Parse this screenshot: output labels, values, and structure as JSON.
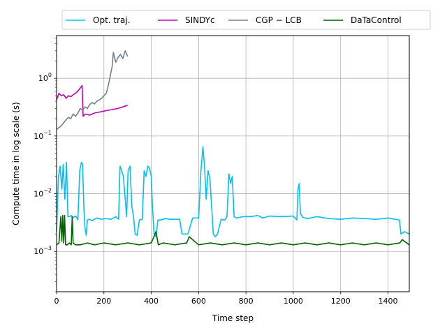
{
  "chart_data": {
    "type": "line",
    "title": "",
    "xlabel": "Time step",
    "ylabel": "Compute time in log scale (s)",
    "xlim": [
      0,
      1490
    ],
    "ylim": [
      0.0002,
      5.5
    ],
    "yscale": "log",
    "grid": true,
    "legend_position": "top",
    "x_ticks": [
      0,
      200,
      400,
      600,
      800,
      1000,
      1200,
      1400
    ],
    "x_tick_labels": [
      "0",
      "200",
      "400",
      "600",
      "800",
      "1000",
      "1200",
      "1400"
    ],
    "y_ticks": [
      0.001,
      0.01,
      0.1,
      1
    ],
    "y_tick_labels": [
      "10^-3",
      "10^-2",
      "10^-1",
      "10^0"
    ],
    "series": [
      {
        "name": "Opt. traj.",
        "color": "#00bfff",
        "x": [
          0,
          8,
          15,
          22,
          28,
          35,
          42,
          48,
          55,
          62,
          68,
          75,
          82,
          90,
          98,
          105,
          110,
          115,
          120,
          125,
          130,
          140,
          150,
          170,
          190,
          210,
          230,
          250,
          262,
          268,
          275,
          282,
          290,
          296,
          302,
          310,
          318,
          325,
          332,
          340,
          350,
          362,
          370,
          378,
          385,
          392,
          400,
          405,
          412,
          420,
          428,
          440,
          460,
          480,
          500,
          520,
          530,
          540,
          555,
          575,
          600,
          610,
          618,
          625,
          632,
          640,
          648,
          655,
          662,
          670,
          680,
          695,
          710,
          720,
          728,
          735,
          742,
          750,
          760,
          790,
          820,
          850,
          870,
          900,
          950,
          1000,
          1015,
          1020,
          1025,
          1030,
          1040,
          1060,
          1100,
          1150,
          1200,
          1250,
          1300,
          1350,
          1400,
          1430,
          1448,
          1455,
          1470,
          1490
        ],
        "y": [
          0.0022,
          0.02,
          0.03,
          0.012,
          0.032,
          0.008,
          0.035,
          0.004,
          0.004,
          0.0042,
          0.0038,
          0.004,
          0.0041,
          0.0035,
          0.025,
          0.035,
          0.032,
          0.006,
          0.0025,
          0.0019,
          0.0035,
          0.0036,
          0.0034,
          0.0038,
          0.0036,
          0.0037,
          0.0036,
          0.004,
          0.0036,
          0.03,
          0.025,
          0.02,
          0.008,
          0.004,
          0.025,
          0.03,
          0.006,
          0.004,
          0.002,
          0.0019,
          0.0035,
          0.0036,
          0.025,
          0.02,
          0.03,
          0.028,
          0.02,
          0.006,
          0.002,
          0.0018,
          0.0035,
          0.0035,
          0.0037,
          0.0036,
          0.0036,
          0.0036,
          0.002,
          0.002,
          0.002,
          0.0038,
          0.0038,
          0.025,
          0.065,
          0.03,
          0.008,
          0.025,
          0.018,
          0.006,
          0.002,
          0.0018,
          0.002,
          0.0036,
          0.0035,
          0.004,
          0.022,
          0.015,
          0.02,
          0.004,
          0.0038,
          0.004,
          0.004,
          0.0042,
          0.0038,
          0.0041,
          0.004,
          0.0041,
          0.0035,
          0.012,
          0.015,
          0.0045,
          0.0039,
          0.0037,
          0.004,
          0.0037,
          0.0036,
          0.0038,
          0.0037,
          0.0036,
          0.0038,
          0.0036,
          0.0035,
          0.002,
          0.0022,
          0.002
        ]
      },
      {
        "name": "SINDYc",
        "color": "#bf00bf",
        "x": [
          0,
          10,
          20,
          30,
          40,
          50,
          60,
          70,
          80,
          90,
          100,
          108,
          112,
          120,
          140,
          160,
          180,
          200,
          220,
          240,
          260,
          280,
          300
        ],
        "y": [
          0.42,
          0.55,
          0.5,
          0.52,
          0.45,
          0.5,
          0.48,
          0.52,
          0.55,
          0.6,
          0.68,
          0.75,
          0.22,
          0.24,
          0.23,
          0.25,
          0.26,
          0.27,
          0.28,
          0.29,
          0.3,
          0.32,
          0.34
        ]
      },
      {
        "name": "CGP − LCB",
        "color": "#708090",
        "x": [
          0,
          10,
          20,
          30,
          40,
          50,
          60,
          70,
          80,
          90,
          100,
          110,
          120,
          130,
          140,
          150,
          160,
          170,
          180,
          190,
          200,
          210,
          220,
          230,
          235,
          240,
          250,
          260,
          270,
          280,
          290,
          300
        ],
        "y": [
          0.13,
          0.14,
          0.15,
          0.17,
          0.19,
          0.21,
          0.2,
          0.24,
          0.22,
          0.25,
          0.3,
          0.28,
          0.32,
          0.3,
          0.35,
          0.38,
          0.36,
          0.4,
          0.42,
          0.45,
          0.5,
          0.55,
          0.8,
          1.3,
          1.6,
          2.8,
          1.9,
          2.3,
          2.6,
          2.2,
          3.0,
          2.4
        ]
      },
      {
        "name": "DaTaControl",
        "color": "#006400",
        "x": [
          0,
          10,
          18,
          22,
          26,
          30,
          34,
          38,
          45,
          55,
          62,
          66,
          70,
          80,
          100,
          130,
          160,
          200,
          250,
          300,
          350,
          400,
          420,
          430,
          450,
          500,
          550,
          560,
          600,
          650,
          700,
          750,
          800,
          850,
          900,
          950,
          1000,
          1050,
          1100,
          1150,
          1200,
          1250,
          1300,
          1350,
          1400,
          1450,
          1460,
          1490
        ],
        "y": [
          0.0013,
          0.0014,
          0.004,
          0.0015,
          0.0042,
          0.0014,
          0.0042,
          0.0013,
          0.0013,
          0.0014,
          0.0013,
          0.004,
          0.0014,
          0.0013,
          0.0013,
          0.0014,
          0.0013,
          0.0014,
          0.0013,
          0.0014,
          0.0013,
          0.0014,
          0.0022,
          0.0013,
          0.0014,
          0.0013,
          0.0014,
          0.0018,
          0.0013,
          0.0014,
          0.0013,
          0.0014,
          0.0013,
          0.0014,
          0.0013,
          0.0014,
          0.0013,
          0.0014,
          0.0013,
          0.0014,
          0.0013,
          0.0014,
          0.0013,
          0.0014,
          0.0013,
          0.0014,
          0.0016,
          0.0013
        ]
      }
    ]
  }
}
